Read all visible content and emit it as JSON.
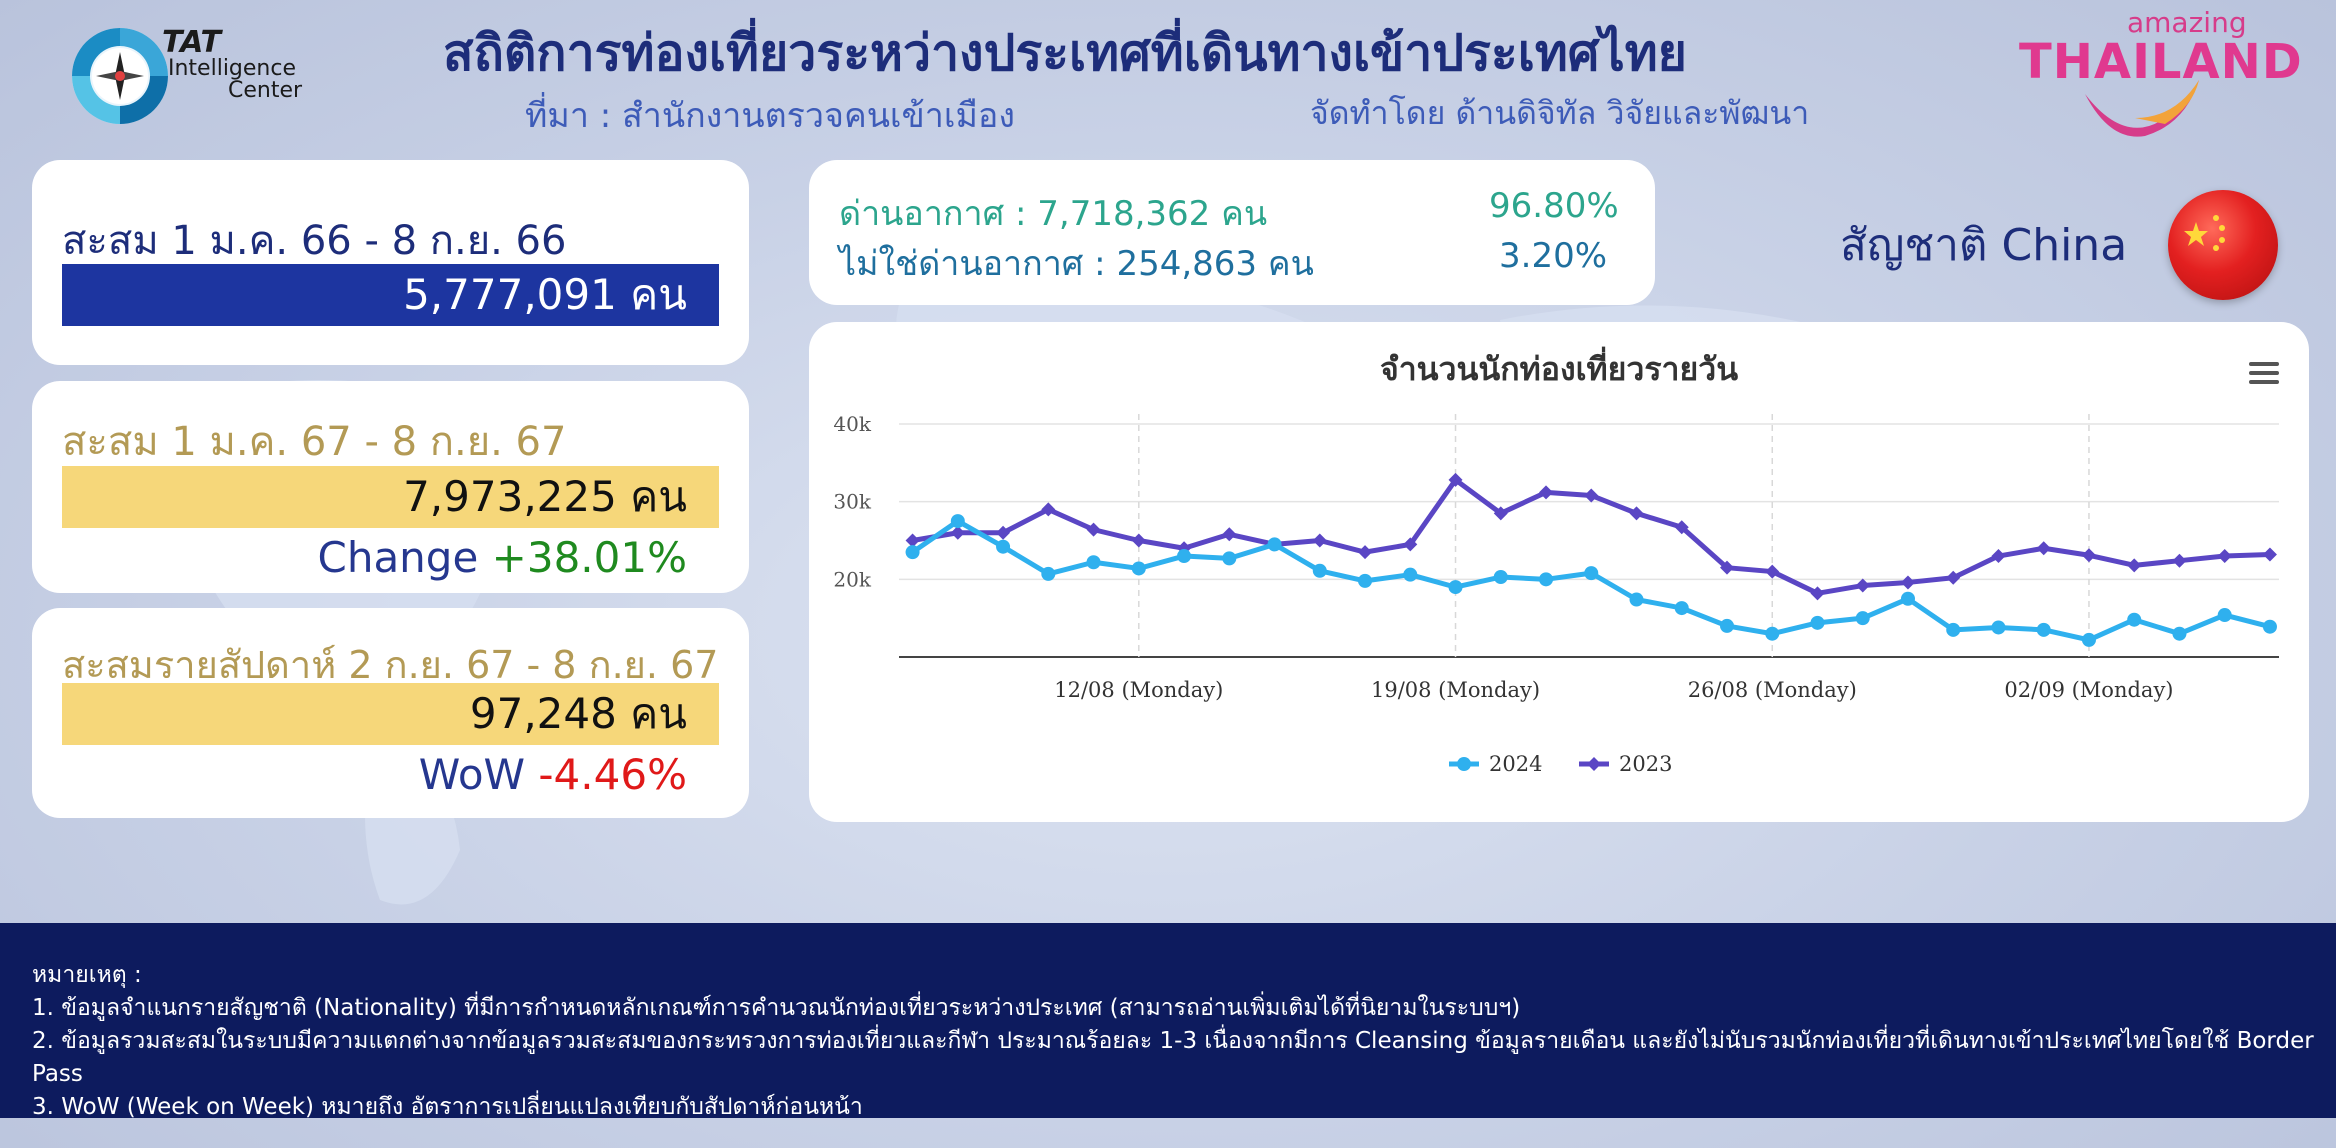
{
  "header": {
    "title": "สถิติการท่องเที่ยวระหว่างประเทศที่เดินทางเข้าประเทศไทย",
    "source": "ที่มา : สำนักงานตรวจคนเข้าเมือง",
    "prepared_by": "จัดทำโดย ด้านดิจิทัล วิจัยและพัฒนา",
    "tat_logo": {
      "line1": "TAT",
      "line2": "Intelligence",
      "line3": "Center"
    },
    "thai_logo": {
      "small": "amazing",
      "big": "THAILAND"
    }
  },
  "cards": {
    "cum_2023": {
      "label": "สะสม 1 ม.ค. 66 - 8 ก.ย. 66",
      "value": "5,777,091 คน"
    },
    "cum_2024": {
      "label": "สะสม 1 ม.ค. 67 - 8 ก.ย. 67",
      "value": "7,973,225 คน",
      "change_label": "Change ",
      "change_value": "+38.01%"
    },
    "week": {
      "label": "สะสมรายสัปดาห์ 2 ก.ย. 67 - 8 ก.ย. 67",
      "value": "97,248 คน",
      "wow_label": "WoW ",
      "wow_value": "-4.46%"
    }
  },
  "ports": {
    "air": {
      "label": "ด่านอากาศ : 7,718,362 คน",
      "pct": "96.80%"
    },
    "non_air": {
      "label": "ไม่ใช่ด่านอากาศ : 254,863 คน",
      "pct": "3.20%"
    }
  },
  "nationality": "สัญชาติ China",
  "colors": {
    "series_2024": "#2fb0ee",
    "series_2023": "#5a46c4",
    "card_blue": "#1d35a0",
    "card_yellow": "#f6d77a",
    "footer_bg": "#0d1b5e"
  },
  "chart_data": {
    "type": "line",
    "title": "จำนวนนักท่องเที่ยวรายวัน",
    "x_tick_labels": [
      "12/08 (Monday)",
      "19/08 (Monday)",
      "26/08 (Monday)",
      "02/09 (Monday)"
    ],
    "x_tick_indices": [
      5,
      12,
      19,
      26
    ],
    "y_ticks": [
      "20k",
      "30k",
      "40k"
    ],
    "ylim": [
      10000,
      40000
    ],
    "legend_position": "bottom-center",
    "series": [
      {
        "name": "2024",
        "color": "#2fb0ee",
        "values": [
          23500,
          27500,
          24200,
          20700,
          22200,
          21400,
          23000,
          22700,
          24500,
          21100,
          19800,
          20600,
          19000,
          20300,
          20000,
          20800,
          17400,
          16300,
          14000,
          13000,
          14400,
          15000,
          17500,
          13500,
          13800,
          13500,
          12200,
          14800,
          13000,
          15400,
          13900
        ]
      },
      {
        "name": "2023",
        "color": "#5a46c4",
        "values": [
          25000,
          26000,
          26000,
          29000,
          26400,
          25000,
          24000,
          25800,
          24500,
          25000,
          23500,
          24500,
          32800,
          28500,
          31200,
          30800,
          28500,
          26700,
          21500,
          21000,
          18200,
          19200,
          19600,
          20200,
          23000,
          24000,
          23100,
          21800,
          22400,
          23000,
          23200
        ]
      }
    ]
  },
  "footer": {
    "heading": "หมายเหตุ :",
    "notes": [
      "1. ข้อมูลจำแนกรายสัญชาติ (Nationality) ที่มีการกำหนดหลักเกณฑ์การคำนวณนักท่องเที่ยวระหว่างประเทศ (สามารถอ่านเพิ่มเติมได้ที่นิยามในระบบฯ)",
      "2. ข้อมูลรวมสะสมในระบบมีความแตกต่างจากข้อมูลรวมสะสมของกระทรวงการท่องเที่ยวและกีฬา ประมาณร้อยละ 1-3 เนื่องจากมีการ Cleansing ข้อมูลรายเดือน และยังไม่นับรวมนักท่องเที่ยวที่เดินทางเข้าประเทศไทยโดยใช้ Border Pass",
      "3. WoW (Week on Week) หมายถึง อัตราการเปลี่ยนแปลงเทียบกับสัปดาห์ก่อนหน้า"
    ]
  }
}
